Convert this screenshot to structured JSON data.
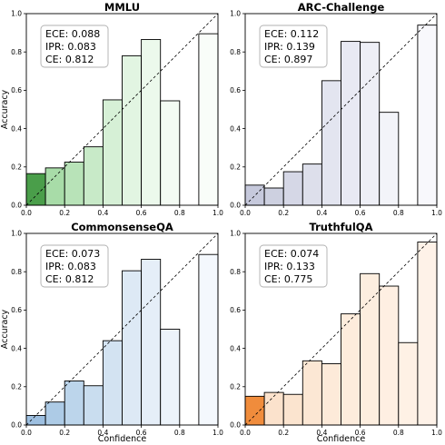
{
  "chart_data": [
    {
      "type": "bar",
      "title": "MMLU",
      "xlabel": "",
      "ylabel": "Accuracy",
      "xlim": [
        0,
        1
      ],
      "ylim": [
        0,
        1
      ],
      "xticks": [
        "0.0",
        "0.2",
        "0.4",
        "0.6",
        "0.8",
        "1.0"
      ],
      "yticks": [
        "0.0",
        "0.2",
        "0.4",
        "0.6",
        "0.8",
        "1.0"
      ],
      "bin_edges": [
        0.0,
        0.1,
        0.2,
        0.3,
        0.4,
        0.5,
        0.6,
        0.7,
        0.8,
        0.9,
        1.0
      ],
      "values": [
        0.165,
        0.195,
        0.225,
        0.305,
        0.55,
        0.78,
        0.865,
        0.545,
        null,
        0.895
      ],
      "stats": [
        "ECE: 0.088",
        "IPR: 0.083",
        "CE: 0.812"
      ],
      "diagonal": true,
      "colors": [
        "#4a9e4a",
        "#a8dca8",
        "#b8e3b8",
        "#c8eac8",
        "#d6f0d6",
        "#e2f5e2",
        "#ecf9ec",
        "#f3fbf3",
        "#f7fdf7",
        "#f9fdf9"
      ]
    },
    {
      "type": "bar",
      "title": "ARC-Challenge",
      "xlabel": "",
      "ylabel": "",
      "xlim": [
        0,
        1
      ],
      "ylim": [
        0,
        1
      ],
      "xticks": [
        "0.0",
        "0.2",
        "0.4",
        "0.6",
        "0.8",
        "1.0"
      ],
      "yticks": [
        "0.0",
        "0.2",
        "0.4",
        "0.6",
        "0.8",
        "1.0"
      ],
      "bin_edges": [
        0.0,
        0.1,
        0.2,
        0.3,
        0.4,
        0.5,
        0.6,
        0.7,
        0.8,
        0.9,
        1.0
      ],
      "values": [
        0.105,
        0.09,
        0.175,
        0.215,
        0.65,
        0.855,
        0.85,
        0.485,
        null,
        0.94
      ],
      "stats": [
        "ECE: 0.112",
        "IPR: 0.139",
        "CE: 0.897"
      ],
      "diagonal": true,
      "colors": [
        "#c6c9dc",
        "#cdd0e0",
        "#d5d7e6",
        "#dddfeb",
        "#e3e5f0",
        "#e8e9f3",
        "#eeeff6",
        "#f3f4f9",
        "#f7f7fb",
        "#f8f8fc"
      ]
    },
    {
      "type": "bar",
      "title": "CommonsenseQA",
      "xlabel": "",
      "ylabel": "Accuracy",
      "xlim": [
        0,
        1
      ],
      "ylim": [
        0,
        1
      ],
      "xticks": [
        "0.0",
        "0.2",
        "0.4",
        "0.6",
        "0.8",
        "1.0"
      ],
      "yticks": [
        "0.0",
        "0.2",
        "0.4",
        "0.6",
        "0.8",
        "1.0"
      ],
      "bin_edges": [
        0.0,
        0.1,
        0.2,
        0.3,
        0.4,
        0.5,
        0.6,
        0.7,
        0.8,
        0.9,
        1.0
      ],
      "values": [
        0.05,
        0.12,
        0.23,
        0.205,
        0.44,
        0.805,
        0.865,
        0.5,
        null,
        0.89
      ],
      "stats": [
        "ECE: 0.073",
        "IPR: 0.083",
        "CE: 0.812"
      ],
      "diagonal": true,
      "colors": [
        "#9dbfe0",
        "#adcbe6",
        "#bcd5eb",
        "#c9ddef",
        "#d3e3f2",
        "#dde9f5",
        "#e5eef8",
        "#ecf3fa",
        "#f1f6fc",
        "#f4f8fd"
      ]
    },
    {
      "type": "bar",
      "title": "TruthfulQA",
      "xlabel": "",
      "ylabel": "",
      "xlim": [
        0,
        1
      ],
      "ylim": [
        0,
        1
      ],
      "xticks": [
        "0.0",
        "0.2",
        "0.4",
        "0.6",
        "0.8",
        "1.0"
      ],
      "yticks": [
        "0.0",
        "0.2",
        "0.4",
        "0.6",
        "0.8",
        "1.0"
      ],
      "bin_edges": [
        0.0,
        0.1,
        0.2,
        0.3,
        0.4,
        0.5,
        0.6,
        0.7,
        0.8,
        0.9,
        1.0
      ],
      "values": [
        0.15,
        0.17,
        0.16,
        0.335,
        0.32,
        0.58,
        0.79,
        0.725,
        0.43,
        0.955
      ],
      "stats": [
        "ECE: 0.074",
        "IPR: 0.133",
        "CE: 0.775"
      ],
      "diagonal": true,
      "colors": [
        "#f08c3c",
        "#fbe2cc",
        "#fbe4cf",
        "#fce7d4",
        "#fdead9",
        "#fdecdc",
        "#fdeedf",
        "#feefe2",
        "#fef1e5",
        "#fef2e8"
      ]
    }
  ],
  "shared_labels": {
    "xlabel": "Confidence"
  }
}
